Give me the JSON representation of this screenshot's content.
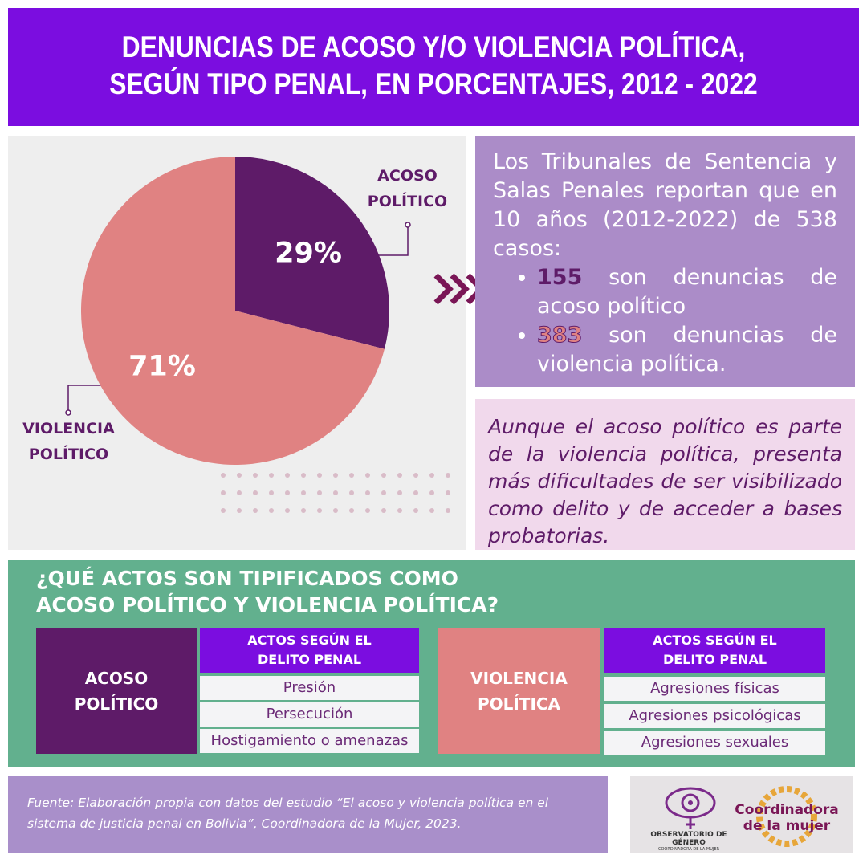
{
  "header": {
    "title": [
      "DENUNCIAS DE ACOSO Y/O VIOLENCIA POLÍTICA,",
      "SEGÚN TIPO PENAL, EN PORCENTAJES, 2012 - 2022"
    ]
  },
  "chart_data": {
    "type": "pie",
    "categories": [
      "ACOSO POLÍTICO",
      "VIOLENCIA POLÍTICO"
    ],
    "values": [
      29,
      71
    ],
    "value_labels": [
      "29%",
      "71%"
    ],
    "colors": [
      "#5e1b68",
      "#e08282"
    ]
  },
  "summary": {
    "intro": "Los Tribunales de Sentencia y Salas Penales reportan que en 10 años (2012-2022) de 538 casos:",
    "bullets": [
      {
        "number": 155,
        "text": "son denuncias de acoso político"
      },
      {
        "number": 383,
        "text": "son denuncias de violencia política."
      }
    ]
  },
  "note": "Aunque el acoso político es parte de la violencia política, presenta más dificultades de ser visibilizado como delito y de acceder a bases probatorias.",
  "acts": {
    "title": [
      "¿QUÉ ACTOS SON TIPIFICADOS COMO",
      "ACOSO POLÍTICO Y VIOLENCIA POLÍTICA?"
    ],
    "tables": [
      {
        "label": "ACOSO POLÍTICO",
        "header": "ACTOS SEGÚN EL DELITO PENAL",
        "rows": [
          "Presión",
          "Persecución",
          "Hostigamiento  o amenazas"
        ]
      },
      {
        "label": "VIOLENCIA POLÍTICA",
        "header": "ACTOS SEGÚN EL DELITO PENAL",
        "rows": [
          "Agresiones físicas",
          "Agresiones psicológicas",
          "Agresiones sexuales"
        ]
      }
    ]
  },
  "footer": {
    "source": "Fuente: Elaboración propia con datos del estudio “El acoso y violencia política en el sistema de justicia penal en Bolivia”, Coordinadora de la Mujer, 2023.",
    "logos": [
      "OBSERVATORIO DE GÉNERO",
      "COORDINADORA DE LA MUJER",
      "Coordinadora de la mujer"
    ]
  }
}
